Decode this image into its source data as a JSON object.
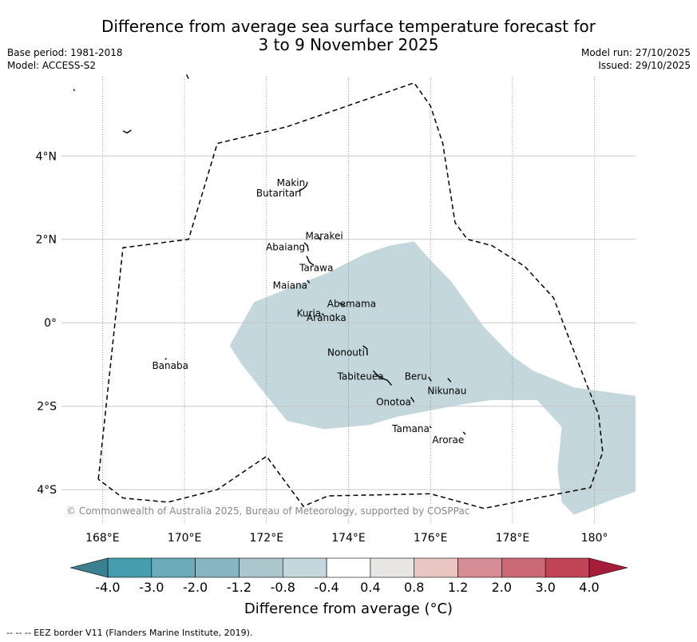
{
  "title": {
    "line1": "Difference from average sea surface temperature forecast for",
    "line2": "3 to 9 November 2025"
  },
  "meta_left": {
    "base_period": "Base period: 1981-2018",
    "model": "Model: ACCESS-S2"
  },
  "meta_right": {
    "model_run": "Model run: 27/10/2025",
    "issued": "Issued: 29/10/2025"
  },
  "map": {
    "lon_range": [
      167,
      181
    ],
    "lat_range": [
      -4.8,
      5.9
    ],
    "x_ticks": [
      {
        "lon": 168,
        "label": "168°E"
      },
      {
        "lon": 170,
        "label": "170°E"
      },
      {
        "lon": 172,
        "label": "172°E"
      },
      {
        "lon": 174,
        "label": "174°E"
      },
      {
        "lon": 176,
        "label": "176°E"
      },
      {
        "lon": 178,
        "label": "178°E"
      },
      {
        "lon": 180,
        "label": "180°"
      }
    ],
    "y_ticks": [
      {
        "lat": 4,
        "label": "4°N"
      },
      {
        "lat": 2,
        "label": "2°N"
      },
      {
        "lat": 0,
        "label": "0°"
      },
      {
        "lat": -2,
        "label": "2°S"
      },
      {
        "lat": -4,
        "label": "4°S"
      }
    ],
    "islands": [
      {
        "name": "Makin",
        "lon": 172.99,
        "lat": 3.28
      },
      {
        "name": "Butaritari",
        "lon": 172.84,
        "lat": 3.07
      },
      {
        "name": "Marakei",
        "lon": 173.28,
        "lat": 2.0
      },
      {
        "name": "Abaiang",
        "lon": 172.96,
        "lat": 1.85
      },
      {
        "name": "Tarawa",
        "lon": 173.02,
        "lat": 1.41
      },
      {
        "name": "Maiana",
        "lon": 173.03,
        "lat": 0.97
      },
      {
        "name": "Abemama",
        "lon": 173.85,
        "lat": 0.45
      },
      {
        "name": "Kuria",
        "lon": 173.38,
        "lat": 0.22
      },
      {
        "name": "Aranuka",
        "lon": 173.62,
        "lat": 0.18
      },
      {
        "name": "Nonouti",
        "lon": 174.4,
        "lat": -0.66
      },
      {
        "name": "Tabiteuea",
        "lon": 174.8,
        "lat": -1.25
      },
      {
        "name": "Beru",
        "lon": 175.99,
        "lat": -1.33
      },
      {
        "name": "Nikunau",
        "lon": 176.45,
        "lat": -1.36
      },
      {
        "name": "Onotoa",
        "lon": 175.55,
        "lat": -1.8
      },
      {
        "name": "Tamana",
        "lon": 175.98,
        "lat": -2.5
      },
      {
        "name": "Arorae",
        "lon": 176.82,
        "lat": -2.64
      },
      {
        "name": "Banaba",
        "lon": 169.54,
        "lat": -0.86
      }
    ],
    "eez_outline": [
      [
        167.9,
        -3.75
      ],
      [
        168.5,
        1.8
      ],
      [
        170.1,
        2.0
      ],
      [
        170.8,
        4.3
      ],
      [
        172.5,
        4.7
      ],
      [
        175.6,
        5.75
      ],
      [
        176.0,
        5.2
      ],
      [
        176.3,
        4.3
      ],
      [
        176.6,
        2.4
      ],
      [
        176.9,
        2.0
      ],
      [
        177.5,
        1.85
      ],
      [
        178.3,
        1.35
      ],
      [
        179.0,
        0.6
      ],
      [
        179.7,
        -1.2
      ],
      [
        180.1,
        -2.2
      ],
      [
        180.2,
        -3.1
      ],
      [
        179.9,
        -3.95
      ],
      [
        177.3,
        -4.45
      ],
      [
        176.0,
        -4.1
      ],
      [
        173.5,
        -4.15
      ],
      [
        172.9,
        -4.4
      ],
      [
        172.0,
        -3.2
      ],
      [
        170.8,
        -4.0
      ],
      [
        169.6,
        -4.3
      ],
      [
        168.5,
        -4.2
      ],
      [
        167.9,
        -3.75
      ]
    ],
    "sst_anomaly_polygon": [
      [
        171.1,
        -0.55
      ],
      [
        171.7,
        0.5
      ],
      [
        173.5,
        1.2
      ],
      [
        174.4,
        1.65
      ],
      [
        175.0,
        1.85
      ],
      [
        175.6,
        1.95
      ],
      [
        176.0,
        1.5
      ],
      [
        176.5,
        1.0
      ],
      [
        177.3,
        -0.1
      ],
      [
        178.0,
        -0.8
      ],
      [
        178.5,
        -1.15
      ],
      [
        179.5,
        -1.55
      ],
      [
        181.0,
        -1.75
      ],
      [
        181.0,
        -4.05
      ],
      [
        180.4,
        -4.25
      ],
      [
        179.5,
        -4.6
      ],
      [
        179.2,
        -4.3
      ],
      [
        179.1,
        -3.5
      ],
      [
        179.2,
        -2.5
      ],
      [
        178.6,
        -1.85
      ],
      [
        177.5,
        -1.85
      ],
      [
        176.8,
        -1.95
      ],
      [
        175.2,
        -2.25
      ],
      [
        174.5,
        -2.45
      ],
      [
        173.4,
        -2.55
      ],
      [
        172.5,
        -2.35
      ],
      [
        171.8,
        -1.5
      ],
      [
        171.4,
        -1.0
      ]
    ],
    "sst_anomaly_color": "#c3d7dc"
  },
  "copyright": "© Commonwealth of Australia 2025, Bureau of Meteorology, supported by COSPPac",
  "colorbar": {
    "boundaries": [
      "-4.0",
      "-3.0",
      "-2.0",
      "-1.2",
      "-0.8",
      "-0.4",
      "0.4",
      "0.8",
      "1.2",
      "2.0",
      "3.0",
      "4.0"
    ],
    "under_color": "#3a8090",
    "over_color": "#a51d3a",
    "colors": [
      "#459dae",
      "#6aacb9",
      "#86b6c1",
      "#acc6cd",
      "#c3d7dc",
      "#ffffff",
      "#e8e6e5",
      "#e9c6c2",
      "#d78d95",
      "#cb6a75",
      "#c04455"
    ],
    "label": "Difference from average (°C)"
  },
  "footnote": "--  --  -- EEZ border V11 (Flanders Marine Institute, 2019)."
}
